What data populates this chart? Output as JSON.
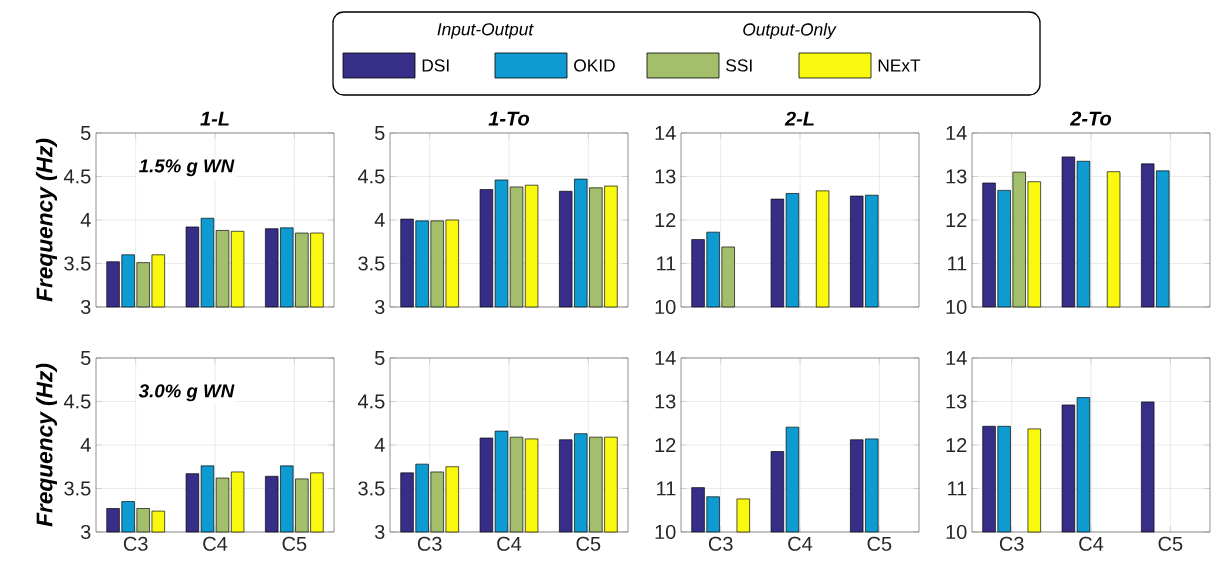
{
  "chart_data": [
    {
      "type": "bar",
      "title": "1-L",
      "subtitle": "1.5% g WN",
      "ylabel": "Frequency (Hz)",
      "categories": [
        null,
        null,
        null
      ],
      "ylim": [
        3,
        5
      ],
      "yticks": [
        3,
        3.5,
        4,
        4.5,
        5
      ],
      "grid": true,
      "legend": "top",
      "annotations": [
        "Input-Output",
        "Output-Only"
      ],
      "series": [
        {
          "name": "DSI",
          "color": "#372e87",
          "values": [
            3.52,
            3.92,
            3.9
          ]
        },
        {
          "name": "OKID",
          "color": "#0e9bd2",
          "values": [
            3.6,
            4.02,
            3.91
          ]
        },
        {
          "name": "SSI",
          "color": "#a3bf6c",
          "values": [
            3.51,
            3.88,
            3.85
          ]
        },
        {
          "name": "NExT",
          "color": "#f9f90f",
          "values": [
            3.6,
            3.87,
            3.85
          ]
        }
      ]
    },
    {
      "type": "bar",
      "title": "1-To",
      "categories": [
        null,
        null,
        null
      ],
      "ylim": [
        3,
        5
      ],
      "yticks": [
        3,
        3.5,
        4,
        4.5,
        5
      ],
      "grid": true,
      "series": [
        {
          "color": "#372e87",
          "values": [
            4.01,
            4.35,
            4.33
          ]
        },
        {
          "color": "#0e9bd2",
          "values": [
            3.99,
            4.46,
            4.47
          ]
        },
        {
          "color": "#a3bf6c",
          "values": [
            3.99,
            4.38,
            4.37
          ]
        },
        {
          "color": "#f9f90f",
          "values": [
            4.0,
            4.4,
            4.39
          ]
        }
      ]
    },
    {
      "type": "bar",
      "title": "2-L",
      "categories": [
        null,
        null,
        null
      ],
      "ylim": [
        10,
        14
      ],
      "yticks": [
        10,
        11,
        12,
        13,
        14
      ],
      "grid": true,
      "series": [
        {
          "color": "#372e87",
          "values": [
            11.55,
            12.48,
            12.55
          ]
        },
        {
          "color": "#0e9bd2",
          "values": [
            11.72,
            12.61,
            12.57
          ]
        },
        {
          "color": "#a3bf6c",
          "values": [
            11.38,
            null,
            null
          ]
        },
        {
          "color": "#f9f90f",
          "values": [
            null,
            12.67,
            null
          ]
        }
      ]
    },
    {
      "type": "bar",
      "title": "2-To",
      "categories": [
        null,
        null,
        null
      ],
      "ylim": [
        10,
        14
      ],
      "yticks": [
        10,
        11,
        12,
        13,
        14
      ],
      "grid": true,
      "series": [
        {
          "color": "#372e87",
          "values": [
            12.85,
            13.45,
            13.29
          ]
        },
        {
          "color": "#0e9bd2",
          "values": [
            12.68,
            13.35,
            13.13
          ]
        },
        {
          "color": "#a3bf6c",
          "values": [
            13.1,
            null,
            null
          ]
        },
        {
          "color": "#f9f90f",
          "values": [
            12.88,
            13.11,
            null
          ]
        }
      ]
    },
    {
      "type": "bar",
      "subtitle": "3.0% g WN",
      "ylabel": "Frequency (Hz)",
      "categories": [
        "C3",
        "C4",
        "C5"
      ],
      "ylim": [
        3,
        5
      ],
      "yticks": [
        3,
        3.5,
        4,
        4.5,
        5
      ],
      "grid": true,
      "series": [
        {
          "color": "#372e87",
          "values": [
            3.27,
            3.67,
            3.64
          ]
        },
        {
          "color": "#0e9bd2",
          "values": [
            3.35,
            3.76,
            3.76
          ]
        },
        {
          "color": "#a3bf6c",
          "values": [
            3.27,
            3.62,
            3.61
          ]
        },
        {
          "color": "#f9f90f",
          "values": [
            3.24,
            3.69,
            3.68
          ]
        }
      ]
    },
    {
      "type": "bar",
      "categories": [
        "C3",
        "C4",
        "C5"
      ],
      "ylim": [
        3,
        5
      ],
      "yticks": [
        3,
        3.5,
        4,
        4.5,
        5
      ],
      "grid": true,
      "series": [
        {
          "color": "#372e87",
          "values": [
            3.68,
            4.08,
            4.06
          ]
        },
        {
          "color": "#0e9bd2",
          "values": [
            3.78,
            4.16,
            4.13
          ]
        },
        {
          "color": "#a3bf6c",
          "values": [
            3.69,
            4.09,
            4.09
          ]
        },
        {
          "color": "#f9f90f",
          "values": [
            3.75,
            4.07,
            4.09
          ]
        }
      ]
    },
    {
      "type": "bar",
      "categories": [
        "C3",
        "C4",
        "C5"
      ],
      "ylim": [
        10,
        14
      ],
      "yticks": [
        10,
        11,
        12,
        13,
        14
      ],
      "grid": true,
      "series": [
        {
          "color": "#372e87",
          "values": [
            11.02,
            11.85,
            12.12
          ]
        },
        {
          "color": "#0e9bd2",
          "values": [
            10.81,
            12.41,
            12.14
          ]
        },
        {
          "values": [
            null,
            null,
            null
          ]
        },
        {
          "color": "#f9f90f",
          "values": [
            10.76,
            null,
            null
          ]
        }
      ]
    },
    {
      "type": "bar",
      "categories": [
        "C3",
        "C4",
        "C5"
      ],
      "ylim": [
        10,
        14
      ],
      "yticks": [
        10,
        11,
        12,
        13,
        14
      ],
      "grid": true,
      "series": [
        {
          "color": "#372e87",
          "values": [
            12.43,
            12.92,
            12.99
          ]
        },
        {
          "color": "#0e9bd2",
          "values": [
            12.43,
            13.09,
            null
          ]
        },
        {
          "values": [
            null,
            null,
            null
          ]
        },
        {
          "color": "#f9f90f",
          "values": [
            12.37,
            null,
            null
          ]
        }
      ]
    }
  ]
}
